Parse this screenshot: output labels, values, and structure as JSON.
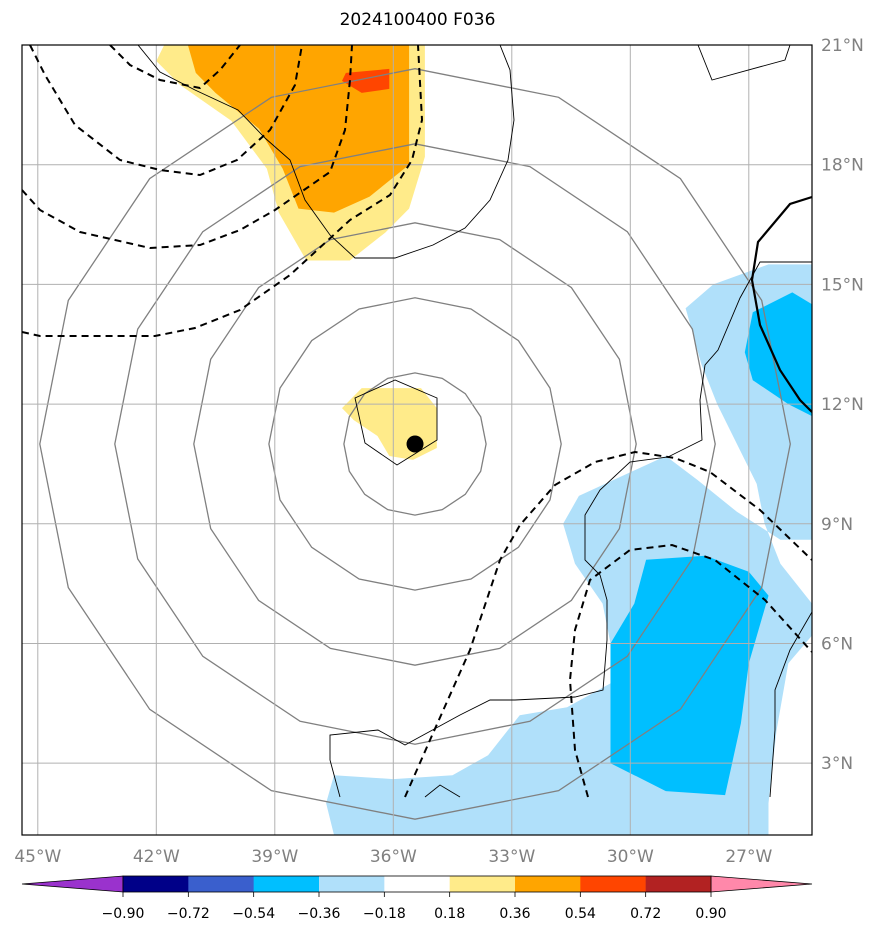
{
  "title": "2024100400 F036",
  "chart_data": {
    "type": "heatmap",
    "title": "2024100400 F036",
    "map_extent": {
      "lon": [
        -45.4,
        -25.4
      ],
      "lat": [
        1.2,
        21.0
      ]
    },
    "x_ticks": [
      {
        "value": -45,
        "label": "45°W"
      },
      {
        "value": -42,
        "label": "42°W"
      },
      {
        "value": -39,
        "label": "39°W"
      },
      {
        "value": -36,
        "label": "36°W"
      },
      {
        "value": -33,
        "label": "33°W"
      },
      {
        "value": -30,
        "label": "30°W"
      },
      {
        "value": -27,
        "label": "27°W"
      }
    ],
    "y_ticks": [
      {
        "value": 21,
        "label": "21°N"
      },
      {
        "value": 18,
        "label": "18°N"
      },
      {
        "value": 15,
        "label": "15°N"
      },
      {
        "value": 12,
        "label": "12°N"
      },
      {
        "value": 9,
        "label": "9°N"
      },
      {
        "value": 6,
        "label": "6°N"
      },
      {
        "value": 3,
        "label": "3°N"
      }
    ],
    "grid": true,
    "center_marker": {
      "lon": -35.45,
      "lat": 11.0
    },
    "colorbar": {
      "orientation": "horizontal",
      "extend": "both",
      "boundaries": [
        -0.9,
        -0.72,
        -0.54,
        -0.36,
        -0.18,
        0.18,
        0.36,
        0.54,
        0.72,
        0.9
      ],
      "tick_labels": [
        "−0.90",
        "−0.72",
        "−0.54",
        "−0.36",
        "−0.18",
        "0.18",
        "0.36",
        "0.54",
        "0.72",
        "0.90"
      ],
      "under_color": "#9a32cd",
      "over_color": "#ff88aa",
      "colors": [
        "#000088",
        "#3a5fcd",
        "#00bfff",
        "#b0e0fa",
        "#ffffff",
        "#ffeb8a",
        "#ffa500",
        "#ff4500",
        "#b22222"
      ]
    },
    "filled_regions": [
      {
        "level": "0.18–0.36",
        "color": "#ffeb8a",
        "points": [
          [
            -39.4,
            21
          ],
          [
            -35.2,
            21
          ],
          [
            -35.2,
            19.9
          ],
          [
            -35.2,
            18.2
          ],
          [
            -35.6,
            16.9
          ],
          [
            -36.2,
            16.3
          ],
          [
            -37.1,
            15.6
          ],
          [
            -38.2,
            15.6
          ],
          [
            -38.9,
            16.8
          ],
          [
            -39.2,
            17.9
          ],
          [
            -40.1,
            19.1
          ],
          [
            -41.4,
            20
          ],
          [
            -42.0,
            20.6
          ],
          [
            -41.8,
            21
          ]
        ]
      },
      {
        "level": "0.36–0.54",
        "color": "#ffa500",
        "points": [
          [
            -41.2,
            21
          ],
          [
            -35.6,
            21
          ],
          [
            -35.6,
            18.0
          ],
          [
            -36.6,
            17.2
          ],
          [
            -37.5,
            16.8
          ],
          [
            -38.4,
            16.9
          ],
          [
            -38.8,
            17.9
          ],
          [
            -39.4,
            18.9
          ],
          [
            -40.5,
            19.8
          ],
          [
            -41.0,
            20.3
          ]
        ]
      },
      {
        "level": "0.54–0.72",
        "color": "#ff4500",
        "points": [
          [
            -37.2,
            20.3
          ],
          [
            -36.1,
            20.4
          ],
          [
            -36.1,
            19.9
          ],
          [
            -36.8,
            19.8
          ],
          [
            -37.3,
            20.1
          ]
        ]
      },
      {
        "level": "0.18–0.36",
        "color": "#ffeb8a",
        "points": [
          [
            -37.3,
            11.9
          ],
          [
            -36.8,
            12.4
          ],
          [
            -35.3,
            12.4
          ],
          [
            -34.9,
            11.9
          ],
          [
            -34.9,
            10.9
          ],
          [
            -35.5,
            10.6
          ],
          [
            -36.1,
            10.7
          ],
          [
            -36.4,
            11.2
          ],
          [
            -37.0,
            11.6
          ]
        ]
      },
      {
        "level": "-0.36–-0.18",
        "color": "#b0e0fa",
        "points": [
          [
            -26.5,
            15.5
          ],
          [
            -25.4,
            15.5
          ],
          [
            -25.4,
            8.6
          ],
          [
            -26.2,
            8.6
          ],
          [
            -27.3,
            9.3
          ],
          [
            -28.3,
            10.1
          ],
          [
            -29.1,
            10.7
          ],
          [
            -31.3,
            9.7
          ],
          [
            -31.7,
            9.0
          ],
          [
            -31.4,
            8.0
          ],
          [
            -30.7,
            7.0
          ],
          [
            -30.5,
            6.0
          ],
          [
            -30.5,
            5.0
          ],
          [
            -31.6,
            4.4
          ],
          [
            -32.8,
            4.2
          ],
          [
            -33.6,
            3.2
          ],
          [
            -34.5,
            2.7
          ],
          [
            -36.0,
            2.6
          ],
          [
            -37.5,
            2.7
          ],
          [
            -37.7,
            2.0
          ],
          [
            -37.5,
            1.2
          ],
          [
            -26.5,
            1.2
          ],
          [
            -26.5,
            2.0
          ],
          [
            -26.3,
            3.8
          ],
          [
            -26.0,
            5.5
          ],
          [
            -25.4,
            6.2
          ],
          [
            -25.4,
            7.0
          ],
          [
            -26.2,
            8.0
          ],
          [
            -26.6,
            9.0
          ],
          [
            -26.8,
            10.0
          ],
          [
            -27.5,
            11.4
          ],
          [
            -27.8,
            12.0
          ],
          [
            -28.2,
            13.0
          ],
          [
            -28.6,
            14.4
          ],
          [
            -27.9,
            15.0
          ]
        ]
      },
      {
        "level": "-0.54–-0.36",
        "color": "#00bfff",
        "points": [
          [
            -29.6,
            8.1
          ],
          [
            -28.1,
            8.2
          ],
          [
            -27.0,
            7.8
          ],
          [
            -26.5,
            7.2
          ],
          [
            -27.0,
            5.5
          ],
          [
            -27.2,
            4.0
          ],
          [
            -27.6,
            2.2
          ],
          [
            -29.1,
            2.3
          ],
          [
            -30.5,
            3.0
          ],
          [
            -30.5,
            6.0
          ],
          [
            -29.9,
            7.0
          ]
        ]
      },
      {
        "level": "-0.54–-0.36",
        "color": "#00bfff",
        "points": [
          [
            -26.9,
            14.3
          ],
          [
            -25.9,
            14.8
          ],
          [
            -25.4,
            14.5
          ],
          [
            -25.4,
            11.7
          ],
          [
            -26.0,
            12.0
          ],
          [
            -26.9,
            12.6
          ],
          [
            -27.1,
            13.3
          ]
        ]
      }
    ],
    "contours": [
      {
        "name": "center",
        "color": "#808080",
        "style": "solid",
        "radii": [
          1.8,
          3.7,
          5.6,
          7.6,
          9.5
        ]
      },
      {
        "name": "dashed",
        "color": "#000000",
        "style": "dashed"
      },
      {
        "name": "solid",
        "color": "#000000",
        "style": "solid"
      }
    ]
  }
}
